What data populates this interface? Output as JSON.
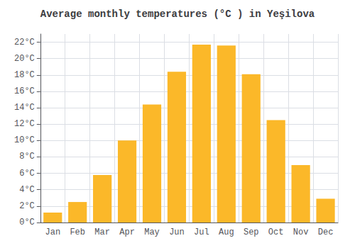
{
  "chart_data": {
    "type": "bar",
    "title": "Average monthly temperatures (°C ) in Yeşilova",
    "categories": [
      "Jan",
      "Feb",
      "Mar",
      "Apr",
      "May",
      "Jun",
      "Jul",
      "Aug",
      "Sep",
      "Oct",
      "Nov",
      "Dec"
    ],
    "values": [
      1.2,
      2.5,
      5.8,
      10.0,
      14.4,
      18.4,
      21.7,
      21.6,
      18.1,
      12.5,
      7.0,
      2.9
    ],
    "color": "#FBB829",
    "ylim": [
      0,
      23
    ],
    "yticks": [
      {
        "value": 0,
        "label": "0°C"
      },
      {
        "value": 2,
        "label": "2°C"
      },
      {
        "value": 4,
        "label": "4°C"
      },
      {
        "value": 6,
        "label": "6°C"
      },
      {
        "value": 8,
        "label": "8°C"
      },
      {
        "value": 10,
        "label": "10°C"
      },
      {
        "value": 12,
        "label": "12°C"
      },
      {
        "value": 14,
        "label": "14°C"
      },
      {
        "value": 16,
        "label": "16°C"
      },
      {
        "value": 18,
        "label": "18°C"
      },
      {
        "value": 20,
        "label": "20°C"
      },
      {
        "value": 22,
        "label": "22°C"
      }
    ],
    "grid": true
  }
}
